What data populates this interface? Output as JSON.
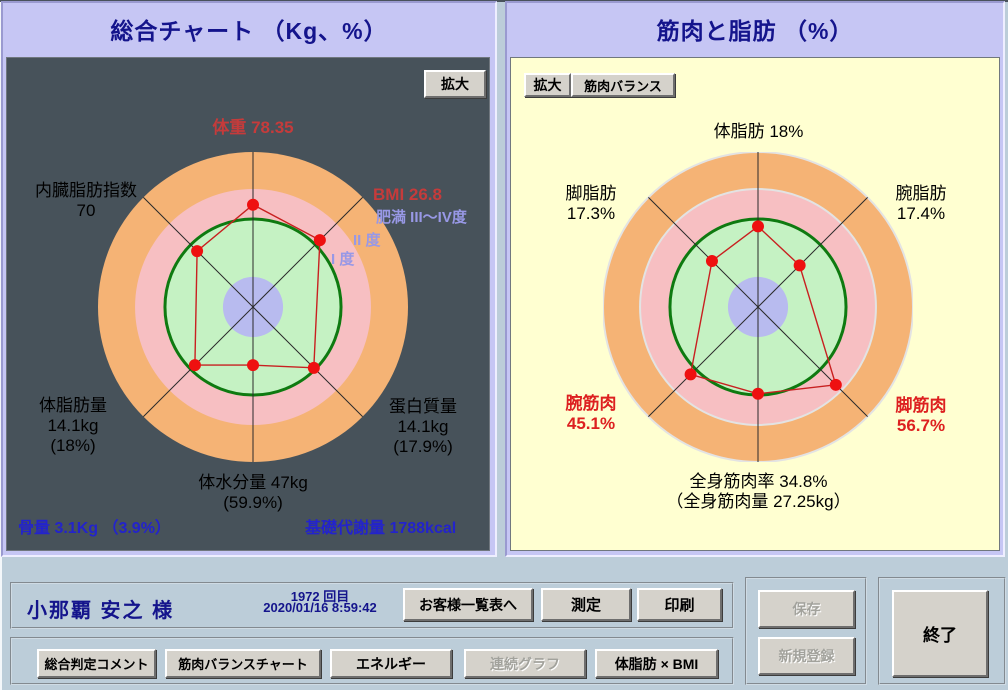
{
  "panels": {
    "left": {
      "title": "総合チャート （Kg、%）",
      "zoom_button": "拡大",
      "labels": {
        "weight": "体重  78.35",
        "visceral_fat_name": "内臓脂肪指数",
        "visceral_fat_value": "70",
        "bmi": "BMI  26.8",
        "obesity_grade": "肥満  III～IV度",
        "grade_2": "II 度",
        "grade_1": "I 度",
        "body_fat_name": "体脂肪量",
        "body_fat_kg": "14.1kg",
        "body_fat_pct": "(18%)",
        "protein_name": "蛋白質量",
        "protein_kg": "14.1kg",
        "protein_pct": "(17.9%)",
        "body_water": "体水分量  47kg",
        "body_water_pct": "(59.9%)",
        "bone": "骨量  3.1Kg （3.9%）",
        "bmr": "基礎代謝量  1788kcal"
      }
    },
    "right": {
      "title": "筋肉と脂肪 （%）",
      "zoom_button": "拡大",
      "muscle_balance_button": "筋肉バランス",
      "labels": {
        "body_fat": "体脂肪  18%",
        "leg_fat_name": "脚脂肪",
        "leg_fat_value": "17.3%",
        "arm_fat_name": "腕脂肪",
        "arm_fat_value": "17.4%",
        "arm_muscle_name": "腕筋肉",
        "arm_muscle_value": "45.1%",
        "leg_muscle_name": "脚筋肉",
        "leg_muscle_value": "56.7%",
        "whole_muscle_rate": "全身筋肉率  34.8%",
        "whole_muscle_mass": "（全身筋肉量  27.25kg）"
      }
    }
  },
  "footer": {
    "customer_name": "小那覇  安之 様",
    "session_count": "1972 回目",
    "datetime": "2020/01/16 8:59:42",
    "buttons": {
      "customer_list": "お客様一覧表へ",
      "measure": "測定",
      "print": "印刷",
      "save": "保存",
      "new_registration": "新規登録",
      "exit": "終了",
      "overall_comment": "総合判定コメント",
      "muscle_balance_chart": "筋肉バランスチャート",
      "energy": "エネルギー",
      "continuous_graph": "連続グラフ",
      "bodyfat_x_bmi": "体脂肪 × BMI"
    }
  },
  "colors": {
    "window_bg": "#bccdd9",
    "title_bar": "#c6c6f4",
    "title_text": "#14148c",
    "left_chart_bg": "#47525a",
    "right_chart_bg": "#ffffd1",
    "ring_orange": "#f5b375",
    "ring_pink": "#f7bfc2",
    "ring_green": "#c5f2c3",
    "ring_green_border": "#0e7a10",
    "ring_lavender": "#b8bbef",
    "axis_line": "#2a2a2a",
    "polygon": "#c82020",
    "dot": "#ee1010",
    "red_text_left": "#c53b3b",
    "red_text_right": "#dd2020",
    "purple_text": "#9898e6",
    "blue_text": "#2323cc"
  },
  "chart_data": [
    {
      "type": "radar",
      "title": "総合チャート （Kg、%）",
      "axes": [
        {
          "label": "体重",
          "value": "78.35",
          "angle_deg": 90,
          "radius_frac": 0.66
        },
        {
          "label": "BMI",
          "value": "26.8",
          "angle_deg": 45,
          "radius_frac": 0.61
        },
        {
          "label": "蛋白質量",
          "value": "14.1kg (17.9%)",
          "angle_deg": 315,
          "radius_frac": 0.555
        },
        {
          "label": "体水分量",
          "value": "47kg (59.9%)",
          "angle_deg": 270,
          "radius_frac": 0.375
        },
        {
          "label": "体脂肪量",
          "value": "14.1kg (18%)",
          "angle_deg": 225,
          "radius_frac": 0.53
        },
        {
          "label": "内臓脂肪指数",
          "value": "70",
          "angle_deg": 135,
          "radius_frac": 0.51
        }
      ],
      "rings": [
        {
          "color_key": "ring_orange",
          "frac": 1.0
        },
        {
          "color_key": "ring_pink",
          "frac": 0.761
        },
        {
          "color_key": "ring_green",
          "frac": 0.568
        },
        {
          "color_key": "ring_lavender",
          "frac": 0.194
        }
      ],
      "ring_outline": "",
      "annotations": [
        "肥満 III～IV度",
        "II 度",
        "I 度",
        "骨量 3.1Kg（3.9%）",
        "基礎代謝量 1788kcal"
      ]
    },
    {
      "type": "radar",
      "title": "筋肉と脂肪 （%）",
      "axes": [
        {
          "label": "体脂肪",
          "value": "18%",
          "angle_deg": 90,
          "radius_frac": 0.52
        },
        {
          "label": "腕脂肪",
          "value": "17.4%",
          "angle_deg": 45,
          "radius_frac": 0.38
        },
        {
          "label": "脚筋肉",
          "value": "56.7%",
          "angle_deg": 315,
          "radius_frac": 0.71
        },
        {
          "label": "全身筋肉率",
          "value": "34.8%（全身筋肉量 27.25kg）",
          "angle_deg": 270,
          "radius_frac": 0.56
        },
        {
          "label": "腕筋肉",
          "value": "45.1%",
          "angle_deg": 225,
          "radius_frac": 0.615
        },
        {
          "label": "脚脂肪",
          "value": "17.3%",
          "angle_deg": 135,
          "radius_frac": 0.42
        }
      ],
      "rings": [
        {
          "color_key": "ring_orange",
          "frac": 1.0
        },
        {
          "color_key": "ring_pink",
          "frac": 0.761
        },
        {
          "color_key": "ring_green",
          "frac": 0.568
        },
        {
          "color_key": "ring_lavender",
          "frac": 0.194
        }
      ],
      "ring_outline": "#e3e3e3",
      "annotations": []
    }
  ]
}
